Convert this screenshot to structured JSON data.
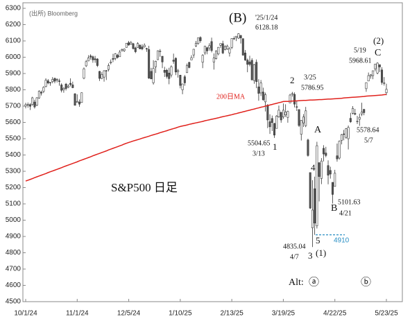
{
  "chart_data": {
    "type": "candlestick",
    "title": "S&P500 日足",
    "source": "(出所) Bloomberg",
    "categories": [
      "10/1/24",
      null,
      null,
      null,
      null,
      null,
      null,
      null,
      null,
      null,
      null,
      null,
      null,
      null,
      null,
      null,
      null,
      null,
      null,
      null,
      null,
      null,
      null,
      "11/1/24",
      null,
      null,
      null,
      null,
      null,
      null,
      null,
      null,
      null,
      null,
      null,
      null,
      null,
      null,
      null,
      null,
      null,
      null,
      null,
      null,
      null,
      null,
      "12/5/24",
      null,
      null,
      null,
      null,
      null,
      null,
      null,
      null,
      null,
      null,
      null,
      null,
      null,
      null,
      null,
      null,
      null,
      null,
      null,
      null,
      null,
      null,
      "1/10/25",
      null,
      null,
      null,
      null,
      null,
      null,
      null,
      null,
      null,
      null,
      null,
      null,
      null,
      null,
      null,
      null,
      null,
      null,
      null,
      null,
      null,
      null,
      "2/13/25",
      null,
      null,
      null,
      null,
      null,
      null,
      null,
      null,
      null,
      null,
      null,
      null,
      null,
      null,
      null,
      null,
      null,
      null,
      null,
      null,
      null,
      null,
      "3/19/25",
      null,
      null,
      null,
      null,
      null,
      null,
      null,
      null,
      null,
      null,
      null,
      null,
      null,
      null,
      null,
      null,
      null,
      null,
      null,
      null,
      null,
      null,
      "4/22/25",
      null,
      null,
      null,
      null,
      null,
      null,
      null,
      null,
      null,
      null,
      null,
      null,
      null,
      null,
      null,
      null,
      null,
      null,
      null,
      null,
      null,
      null,
      "5/23/25"
    ],
    "open": [
      5700,
      5709,
      5709,
      5710,
      5725,
      5705,
      5750,
      5785,
      5790,
      5820,
      5855,
      5845,
      5850,
      5870,
      5860,
      5855,
      5830,
      5800,
      5835,
      5815,
      5840,
      5830,
      5775,
      5723,
      5725,
      5722,
      5871,
      5947,
      5977,
      6008,
      6003,
      5990,
      5989,
      5913,
      5870,
      5878,
      5918,
      5925,
      5965,
      5992,
      5992,
      6012,
      6003,
      6040,
      6040,
      6060,
      6089,
      6081,
      6083,
      6057,
      6060,
      6074,
      6063,
      6063,
      6053,
      6047,
      5913,
      5843,
      5941,
      5985,
      6034,
      6006,
      5920,
      5920,
      5903,
      5891,
      5982,
      5993,
      5910,
      5890,
      5800,
      5880,
      5905,
      5968,
      5983,
      6014,
      6069,
      6084,
      6121,
      5969,
      6027,
      6058,
      6057,
      6096,
      5970,
      5991,
      6020,
      6073,
      6083,
      6047,
      6050,
      6026,
      6060,
      6115,
      6121,
      6117,
      6134,
      6114,
      6026,
      5982,
      5971,
      5981,
      5857,
      5969,
      5818,
      5781,
      5786,
      5726,
      5706,
      5604,
      5624,
      5594,
      5563,
      5635,
      5662,
      5633,
      5646,
      5631,
      5719,
      5772,
      5772,
      5696,
      5679,
      5527,
      5597,
      5580,
      5492,
      5292,
      4953,
      5193,
      4965,
      5353,
      5256,
      5441,
      5412,
      5335,
      5305,
      5232,
      5207,
      5395,
      5381,
      5489,
      5529,
      5508,
      5500,
      5625,
      5656,
      5655,
      5606,
      5619,
      5652,
      5680,
      5807,
      5854,
      5886,
      5887,
      5929,
      5903,
      5954,
      5922,
      5841,
      5782
    ],
    "high": [
      5720,
      5722,
      5718,
      5757,
      5739,
      5755,
      5797,
      5795,
      5822,
      5871,
      5866,
      5847,
      5878,
      5875,
      5870,
      5868,
      5840,
      5816,
      5842,
      5834,
      5870,
      5850,
      5780,
      5772,
      5741,
      5784,
      5937,
      5983,
      6012,
      6018,
      6010,
      6008,
      5994,
      5916,
      5908,
      5920,
      5921,
      5962,
      5986,
      6021,
      6025,
      6021,
      6044,
      6053,
      6053,
      6087,
      6100,
      6100,
      6088,
      6065,
      6092,
      6079,
      6079,
      6085,
      6058,
      6070,
      5935,
      5982,
      5979,
      6041,
      6050,
      6007,
      5941,
      5930,
      5935,
      5950,
      6022,
      6000,
      5928,
      5891,
      5837,
      5891,
      5961,
      5972,
      6012,
      6051,
      6100,
      6119,
      6128,
      6018,
      6069,
      6064,
      6086,
      6120,
      6023,
      6042,
      6062,
      6085,
      6101,
      6073,
      6077,
      6063,
      6116,
      6128,
      6129,
      6147,
      6134,
      6114,
      6044,
      5992,
      6009,
      5994,
      5959,
      5986,
      5865,
      5860,
      5813,
      5783,
      5712,
      5650,
      5642,
      5597,
      5645,
      5703,
      5662,
      5716,
      5711,
      5672,
      5775,
      5787,
      5784,
      5732,
      5679,
      5615,
      5651,
      5695,
      5500,
      5292,
      5246,
      5267,
      5481,
      5353,
      5381,
      5460,
      5450,
      5367,
      5328,
      5233,
      5309,
      5470,
      5489,
      5529,
      5554,
      5565,
      5581,
      5659,
      5700,
      5683,
      5640,
      5654,
      5721,
      5683,
      5845,
      5906,
      5896,
      5917,
      5958,
      5969,
      5954,
      5939,
      5878,
      5837
    ],
    "low": [
      5686,
      5690,
      5676,
      5702,
      5685,
      5700,
      5745,
      5765,
      5780,
      5815,
      5834,
      5825,
      5840,
      5840,
      5845,
      5825,
      5784,
      5782,
      5796,
      5810,
      5820,
      5810,
      5703,
      5723,
      5696,
      5720,
      5865,
      5940,
      5976,
      5985,
      5966,
      5966,
      5940,
      5854,
      5865,
      5850,
      5860,
      5913,
      5956,
      5970,
      5981,
      5992,
      6003,
      6035,
      6032,
      6060,
      6070,
      6076,
      6048,
      6025,
      6059,
      6051,
      6043,
      6059,
      6033,
      5867,
      5865,
      5832,
      5903,
      5983,
      6003,
      5933,
      5879,
      5869,
      5834,
      5876,
      5960,
      5890,
      5875,
      5809,
      5773,
      5825,
      5905,
      5932,
      5983,
      5995,
      6063,
      6077,
      6089,
      5933,
      6014,
      6018,
      6040,
      6030,
      5924,
      5986,
      6012,
      6057,
      6019,
      6042,
      6045,
      6004,
      6050,
      6106,
      6099,
      6112,
      6084,
      6009,
      5977,
      5908,
      5944,
      5858,
      5837,
      5810,
      5733,
      5762,
      5732,
      5667,
      5565,
      5529,
      5547,
      5505,
      5563,
      5629,
      5598,
      5622,
      5633,
      5598,
      5719,
      5758,
      5692,
      5670,
      5572,
      5489,
      5572,
      5571,
      5390,
      5069,
      4835,
      4910,
      4949,
      5115,
      5221,
      5360,
      5386,
      5220,
      5255,
      5102,
      5207,
      5359,
      5372,
      5465,
      5490,
      5500,
      5434,
      5597,
      5649,
      5644,
      5590,
      5579,
      5639,
      5644,
      5788,
      5853,
      5868,
      5865,
      5914,
      5895,
      5909,
      5831,
      5826,
      5767
    ],
    "close": [
      5709,
      5709,
      5699,
      5751,
      5695,
      5751,
      5792,
      5780,
      5815,
      5859,
      5842,
      5842,
      5864,
      5853,
      5865,
      5851,
      5797,
      5809,
      5808,
      5823,
      5832,
      5813,
      5705,
      5729,
      5712,
      5782,
      5929,
      5973,
      5996,
      6001,
      5984,
      5985,
      5949,
      5870,
      5894,
      5917,
      5918,
      5949,
      5970,
      5987,
      6021,
      5999,
      6032,
      6047,
      6050,
      6086,
      6075,
      6090,
      6053,
      6034,
      6084,
      6051,
      6051,
      6074,
      6050,
      5872,
      5867,
      5931,
      5975,
      6040,
      6037,
      5971,
      5907,
      5882,
      5869,
      5942,
      5975,
      5909,
      5918,
      5827,
      5836,
      5843,
      5950,
      5937,
      5997,
      6049,
      6086,
      6119,
      6101,
      6012,
      6068,
      6039,
      6071,
      6041,
      5995,
      6038,
      6061,
      6084,
      6026,
      6066,
      6068,
      6052,
      6115,
      6115,
      6129,
      6144,
      6118,
      6013,
      5983,
      5956,
      5956,
      5861,
      5955,
      5850,
      5778,
      5842,
      5739,
      5770,
      5615,
      5573,
      5599,
      5522,
      5639,
      5675,
      5615,
      5675,
      5663,
      5667,
      5768,
      5777,
      5712,
      5693,
      5581,
      5612,
      5633,
      5671,
      5397,
      5074,
      5062,
      4982,
      5457,
      5268,
      5363,
      5406,
      5397,
      5276,
      5283,
      5158,
      5288,
      5376,
      5485,
      5525,
      5529,
      5561,
      5569,
      5604,
      5686,
      5650,
      5607,
      5631,
      5664,
      5660,
      5844,
      5887,
      5892,
      5917,
      5958,
      5964,
      5940,
      5845,
      5842,
      5803
    ],
    "up_color": "#ffffff",
    "down_color": "#555555",
    "candle_edge_color": "#333333",
    "series": [
      {
        "name": "200日MA",
        "color": "#e0201b",
        "values": [
          5240,
          5245,
          5250,
          5255,
          5261,
          5266,
          5271,
          5276,
          5281,
          5286,
          5292,
          5297,
          5302,
          5307,
          5312,
          5317,
          5322,
          5328,
          5333,
          5338,
          5343,
          5348,
          5353,
          5358,
          5364,
          5369,
          5374,
          5379,
          5384,
          5389,
          5395,
          5400,
          5405,
          5410,
          5415,
          5420,
          5425,
          5431,
          5436,
          5441,
          5446,
          5451,
          5456,
          5461,
          5467,
          5472,
          5477,
          5481,
          5486,
          5490,
          5494,
          5498,
          5503,
          5507,
          5511,
          5515,
          5520,
          5524,
          5528,
          5532,
          5537,
          5541,
          5545,
          5549,
          5554,
          5558,
          5562,
          5566,
          5571,
          5575,
          5578,
          5581,
          5584,
          5588,
          5591,
          5594,
          5597,
          5600,
          5603,
          5606,
          5610,
          5613,
          5616,
          5619,
          5622,
          5625,
          5628,
          5632,
          5635,
          5638,
          5641,
          5644,
          5647,
          5651,
          5654,
          5658,
          5661,
          5665,
          5668,
          5672,
          5675,
          5679,
          5682,
          5686,
          5689,
          5693,
          5696,
          5700,
          5703,
          5707,
          5710,
          5714,
          5717,
          5721,
          5724,
          5728,
          5729,
          5729,
          5730,
          5731,
          5732,
          5732,
          5733,
          5734,
          5735,
          5735,
          5736,
          5737,
          5737,
          5738,
          5739,
          5740,
          5740,
          5741,
          5742,
          5743,
          5743,
          5744,
          5745,
          5746,
          5747,
          5748,
          5750,
          5751,
          5752,
          5753,
          5754,
          5755,
          5756,
          5757,
          5758,
          5759,
          5761,
          5762,
          5763,
          5764,
          5765,
          5766,
          5767,
          5768,
          5770,
          5771
        ]
      }
    ],
    "ylim": [
      4500,
      6300
    ],
    "yticks": [
      4500,
      4600,
      4700,
      4800,
      4900,
      5000,
      5100,
      5200,
      5300,
      5400,
      5500,
      5600,
      5700,
      5800,
      5900,
      6000,
      6100,
      6200,
      6300
    ],
    "reference_line": {
      "value": 4910,
      "color": "#2a8fc4"
    },
    "annotations": [
      "(B)",
      "'25/1/24",
      "6128.18",
      "5504.65",
      "3/13",
      "1",
      "2",
      "3/25",
      "5786.95",
      "A",
      "4",
      "3",
      "(1)",
      "5",
      "4835.04",
      "4/7",
      "B",
      "5101.63",
      "4/21",
      "5578.64",
      "5/7",
      "5/19",
      "5968.61",
      "(2)",
      "C",
      "Alt:",
      "ⓐ",
      "ⓑ"
    ]
  }
}
